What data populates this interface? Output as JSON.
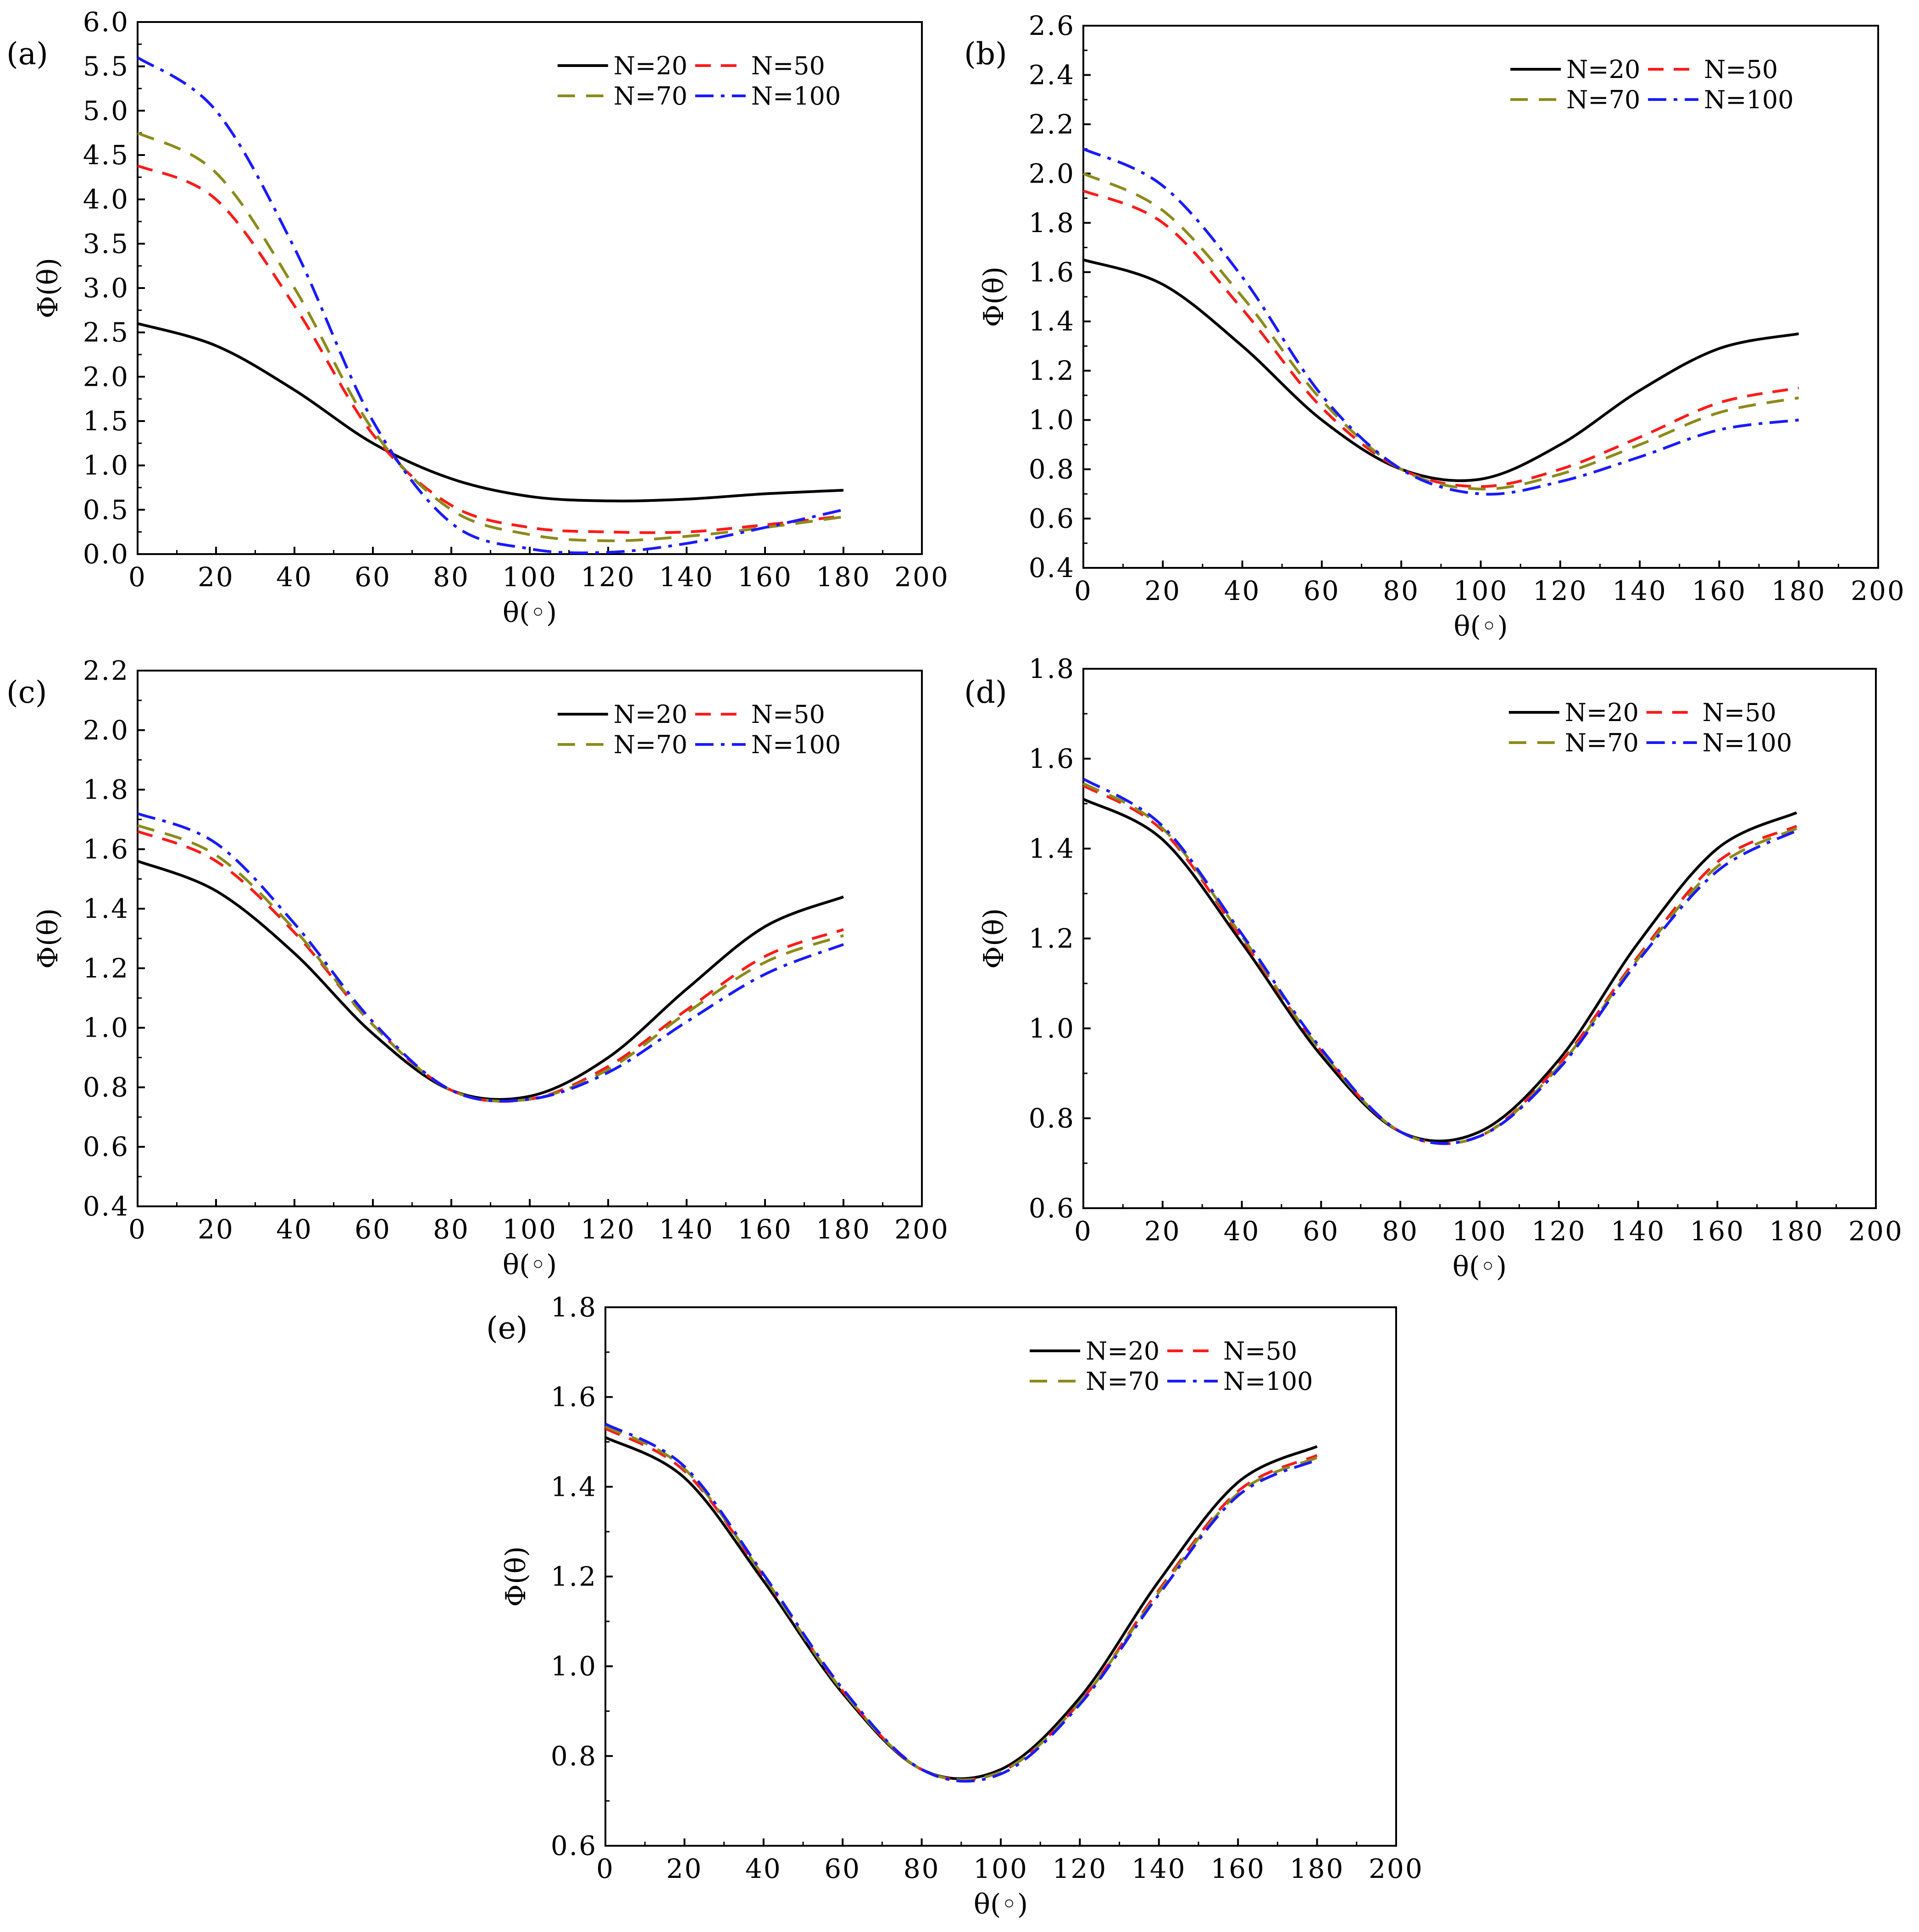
{
  "figure": {
    "xlabel": "θ(◦)",
    "ylabel": "Φ(θ)",
    "colors": {
      "N=20": "#000000",
      "N=50": "#ff1a1a",
      "N=70": "#8b8b1a",
      "N=100": "#1a1aff"
    },
    "legend_labels": [
      "N=20",
      "N=50",
      "N=70",
      "N=100"
    ]
  },
  "chart_data": [
    {
      "type": "line",
      "label": "(a)",
      "xlabel": "θ(◦)",
      "ylabel": "Φ(θ)",
      "xlim": [
        0,
        200
      ],
      "ylim": [
        0.0,
        6.0
      ],
      "x_ticks": [
        "0",
        "20",
        "40",
        "60",
        "80",
        "100",
        "120",
        "140",
        "160",
        "180",
        "200"
      ],
      "y_ticks": [
        "0.0",
        "0.5",
        "1.0",
        "1.5",
        "2.0",
        "2.5",
        "3.0",
        "3.5",
        "4.0",
        "4.5",
        "5.0",
        "5.5",
        "6.0"
      ],
      "legend_position": "top-right",
      "x": [
        0,
        20,
        40,
        60,
        80,
        100,
        120,
        140,
        160,
        180
      ],
      "series": [
        {
          "name": "N=20",
          "values": [
            2.6,
            2.35,
            1.85,
            1.25,
            0.85,
            0.65,
            0.6,
            0.62,
            0.68,
            0.72
          ]
        },
        {
          "name": "N=50",
          "values": [
            4.38,
            4.0,
            2.8,
            1.35,
            0.55,
            0.3,
            0.25,
            0.25,
            0.33,
            0.43
          ]
        },
        {
          "name": "N=70",
          "values": [
            4.75,
            4.3,
            3.0,
            1.4,
            0.5,
            0.22,
            0.15,
            0.2,
            0.3,
            0.42
          ]
        },
        {
          "name": "N=100",
          "values": [
            5.6,
            5.0,
            3.45,
            1.5,
            0.35,
            0.06,
            0.02,
            0.12,
            0.3,
            0.5
          ]
        }
      ]
    },
    {
      "type": "line",
      "label": "(b)",
      "xlabel": "θ(◦)",
      "ylabel": "Φ(θ)",
      "xlim": [
        0,
        200
      ],
      "ylim": [
        0.4,
        2.6
      ],
      "x_ticks": [
        "0",
        "20",
        "40",
        "60",
        "80",
        "100",
        "120",
        "140",
        "160",
        "180",
        "200"
      ],
      "y_ticks": [
        "0.4",
        "0.6",
        "0.8",
        "1.0",
        "1.2",
        "1.4",
        "1.6",
        "1.8",
        "2.0",
        "2.2",
        "2.4",
        "2.6"
      ],
      "legend_position": "top-right",
      "x": [
        0,
        20,
        40,
        60,
        80,
        100,
        120,
        140,
        160,
        180
      ],
      "series": [
        {
          "name": "N=20",
          "values": [
            1.65,
            1.55,
            1.3,
            1.0,
            0.8,
            0.76,
            0.9,
            1.12,
            1.29,
            1.35
          ]
        },
        {
          "name": "N=50",
          "values": [
            1.93,
            1.8,
            1.45,
            1.05,
            0.8,
            0.73,
            0.8,
            0.93,
            1.07,
            1.13
          ]
        },
        {
          "name": "N=70",
          "values": [
            2.0,
            1.85,
            1.5,
            1.08,
            0.8,
            0.72,
            0.78,
            0.9,
            1.03,
            1.09
          ]
        },
        {
          "name": "N=100",
          "values": [
            2.1,
            1.95,
            1.58,
            1.1,
            0.8,
            0.7,
            0.75,
            0.85,
            0.96,
            1.0
          ]
        }
      ]
    },
    {
      "type": "line",
      "label": "(c)",
      "xlabel": "θ(◦)",
      "ylabel": "Φ(θ)",
      "xlim": [
        0,
        200
      ],
      "ylim": [
        0.4,
        2.2
      ],
      "x_ticks": [
        "0",
        "20",
        "40",
        "60",
        "80",
        "100",
        "120",
        "140",
        "160",
        "180",
        "200"
      ],
      "y_ticks": [
        "0.4",
        "0.6",
        "0.8",
        "1.0",
        "1.2",
        "1.4",
        "1.6",
        "1.8",
        "2.0",
        "2.2"
      ],
      "legend_position": "top-right",
      "x": [
        0,
        20,
        40,
        60,
        80,
        100,
        120,
        140,
        160,
        180
      ],
      "series": [
        {
          "name": "N=20",
          "values": [
            1.56,
            1.46,
            1.25,
            0.98,
            0.79,
            0.77,
            0.9,
            1.13,
            1.34,
            1.44
          ]
        },
        {
          "name": "N=50",
          "values": [
            1.66,
            1.56,
            1.32,
            1.01,
            0.79,
            0.76,
            0.87,
            1.06,
            1.24,
            1.33
          ]
        },
        {
          "name": "N=70",
          "values": [
            1.68,
            1.58,
            1.33,
            1.01,
            0.79,
            0.76,
            0.86,
            1.05,
            1.22,
            1.31
          ]
        },
        {
          "name": "N=100",
          "values": [
            1.72,
            1.62,
            1.35,
            1.02,
            0.79,
            0.76,
            0.85,
            1.02,
            1.18,
            1.28
          ]
        }
      ]
    },
    {
      "type": "line",
      "label": "(d)",
      "xlabel": "θ(◦)",
      "ylabel": "Φ(θ)",
      "xlim": [
        0,
        200
      ],
      "ylim": [
        0.6,
        1.8
      ],
      "x_ticks": [
        "0",
        "20",
        "40",
        "60",
        "80",
        "100",
        "120",
        "140",
        "160",
        "180",
        "200"
      ],
      "y_ticks": [
        "0.6",
        "0.8",
        "1.0",
        "1.2",
        "1.4",
        "1.6",
        "1.8"
      ],
      "legend_position": "top-right",
      "x": [
        0,
        20,
        40,
        60,
        80,
        100,
        120,
        140,
        160,
        180
      ],
      "series": [
        {
          "name": "N=20",
          "values": [
            1.51,
            1.42,
            1.19,
            0.94,
            0.77,
            0.77,
            0.93,
            1.19,
            1.4,
            1.48
          ]
        },
        {
          "name": "N=50",
          "values": [
            1.54,
            1.44,
            1.2,
            0.95,
            0.77,
            0.76,
            0.92,
            1.16,
            1.37,
            1.45
          ]
        },
        {
          "name": "N=70",
          "values": [
            1.545,
            1.445,
            1.205,
            0.95,
            0.77,
            0.76,
            0.915,
            1.155,
            1.36,
            1.445
          ]
        },
        {
          "name": "N=100",
          "values": [
            1.555,
            1.45,
            1.21,
            0.955,
            0.77,
            0.76,
            0.91,
            1.15,
            1.35,
            1.44
          ]
        }
      ]
    },
    {
      "type": "line",
      "label": "(e)",
      "xlabel": "θ(◦)",
      "ylabel": "Φ(θ)",
      "xlim": [
        0,
        200
      ],
      "ylim": [
        0.6,
        1.8
      ],
      "x_ticks": [
        "0",
        "20",
        "40",
        "60",
        "80",
        "100",
        "120",
        "140",
        "160",
        "180",
        "200"
      ],
      "y_ticks": [
        "0.6",
        "0.8",
        "1.0",
        "1.2",
        "1.4",
        "1.6",
        "1.8"
      ],
      "legend_position": "top-right",
      "x": [
        0,
        20,
        40,
        60,
        80,
        100,
        120,
        140,
        160,
        180
      ],
      "series": [
        {
          "name": "N=20",
          "values": [
            1.51,
            1.42,
            1.19,
            0.94,
            0.77,
            0.77,
            0.93,
            1.19,
            1.41,
            1.49
          ]
        },
        {
          "name": "N=50",
          "values": [
            1.53,
            1.435,
            1.2,
            0.945,
            0.77,
            0.765,
            0.92,
            1.17,
            1.39,
            1.47
          ]
        },
        {
          "name": "N=70",
          "values": [
            1.535,
            1.44,
            1.2,
            0.945,
            0.77,
            0.765,
            0.92,
            1.165,
            1.385,
            1.465
          ]
        },
        {
          "name": "N=100",
          "values": [
            1.54,
            1.445,
            1.205,
            0.95,
            0.77,
            0.76,
            0.915,
            1.16,
            1.38,
            1.46
          ]
        }
      ]
    }
  ]
}
